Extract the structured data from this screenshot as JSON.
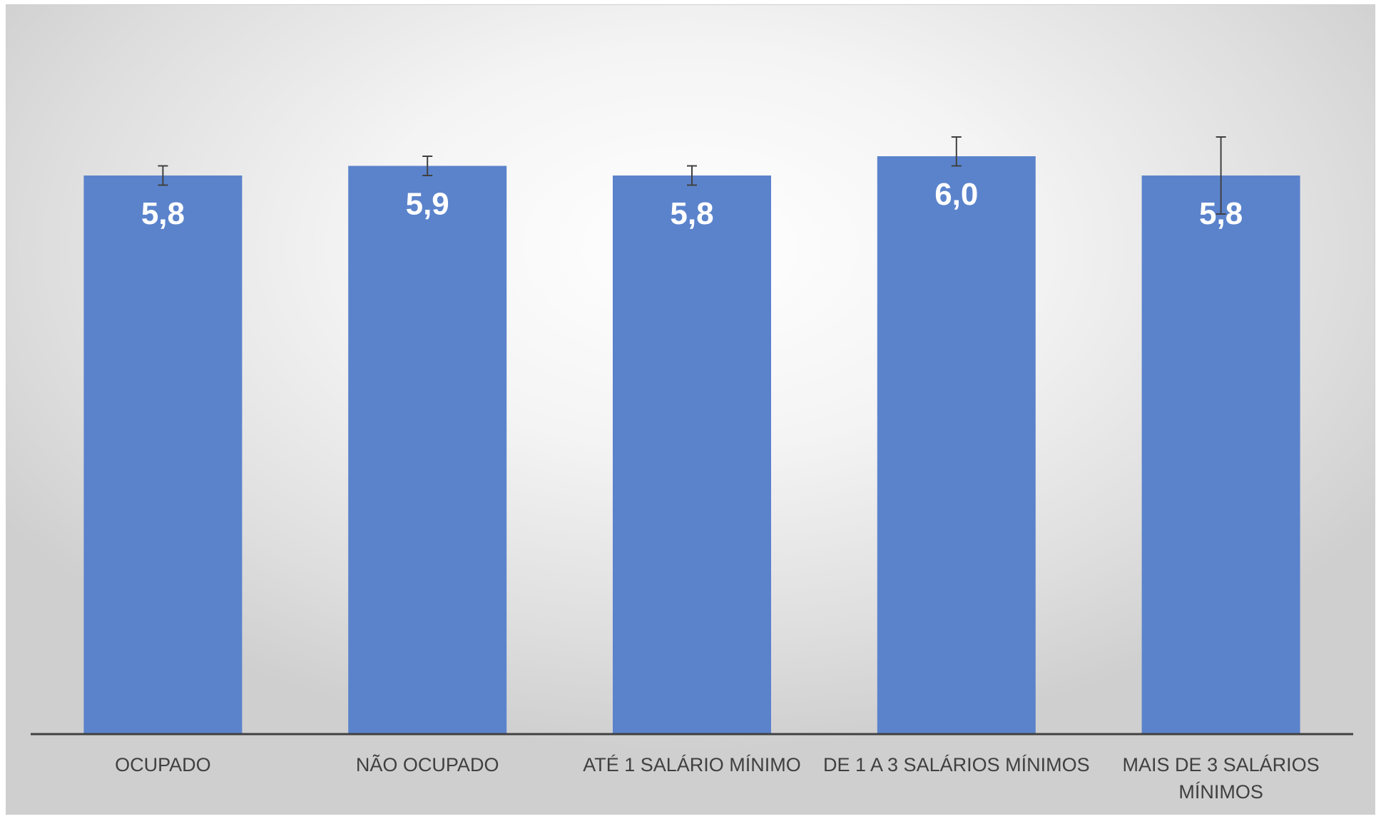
{
  "chart_data": {
    "type": "bar",
    "categories": [
      [
        "OCUPADO"
      ],
      [
        "NÃO OCUPADO"
      ],
      [
        "ATÉ 1 SALÁRIO MÍNIMO"
      ],
      [
        "DE 1 A 3 SALÁRIOS MÍNIMOS"
      ],
      [
        "MAIS DE 3 SALÁRIOS",
        "MÍNIMOS"
      ]
    ],
    "values": [
      5.8,
      5.9,
      5.8,
      6.0,
      5.8
    ],
    "value_labels": [
      "5,8",
      "5,9",
      "5,8",
      "6,0",
      "5,8"
    ],
    "error_low": [
      5.7,
      5.8,
      5.7,
      5.9,
      5.4
    ],
    "error_high": [
      5.9,
      6.0,
      5.9,
      6.2,
      6.2
    ],
    "ylim": [
      0,
      8
    ],
    "gridlines": false,
    "legend": "none",
    "bar_color": "#5b83cc",
    "axis_color": "#404040",
    "error_color": "#404040"
  }
}
